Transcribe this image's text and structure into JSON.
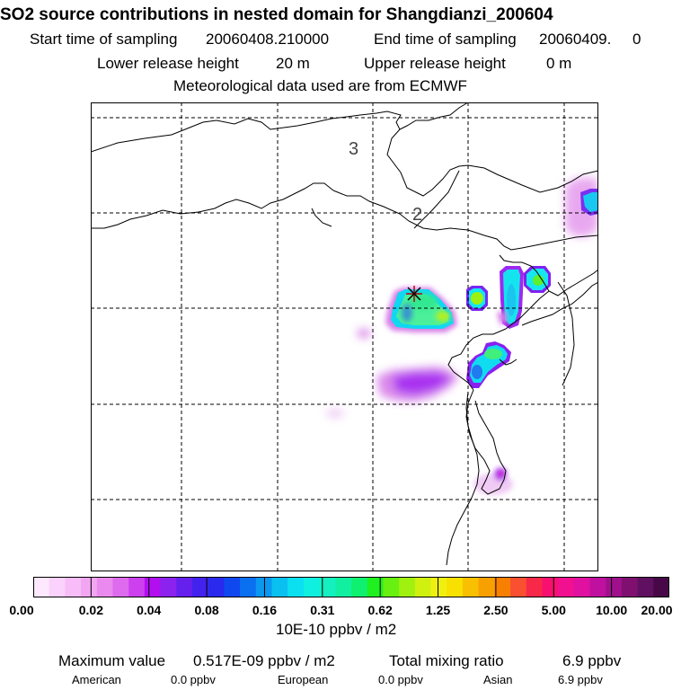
{
  "header": {
    "title": "SO2 source contributions in nested domain for Shangdianzi_200604",
    "start_label": "Start time of sampling",
    "start_value": "20060408.210000",
    "end_label": "End time of sampling",
    "end_value": "20060409.     0",
    "lower_label": "Lower release height",
    "lower_value": "20 m",
    "upper_label": "Upper release height",
    "upper_value": "0 m",
    "met_text": "Meteorological data used are from ECMWF"
  },
  "map": {
    "contour_labels": [
      "3",
      "2"
    ],
    "colors": {
      "frame": "#000000",
      "grid": "#000000",
      "coast": "#000000"
    }
  },
  "colorbar": {
    "colors": [
      "#fde8fd",
      "#fbd2fb",
      "#f8bcf8",
      "#f2a6f2",
      "#ea8aee",
      "#de6bee",
      "#cc40ee",
      "#b20ff0",
      "#8b22ee",
      "#6620ee",
      "#4422ee",
      "#2a2aee",
      "#1048f0",
      "#0a70f0",
      "#0a98f0",
      "#0ac0f0",
      "#0ae0f0",
      "#10f0e0",
      "#14f0c0",
      "#10f0a0",
      "#10f070",
      "#20f020",
      "#68f010",
      "#a0f010",
      "#d0f010",
      "#f0f010",
      "#f8e000",
      "#f8c000",
      "#f8a000",
      "#f88000",
      "#f85030",
      "#f82848",
      "#f81070",
      "#f01090",
      "#e010a0",
      "#c010a0",
      "#a0108c",
      "#801070",
      "#601060",
      "#480848"
    ],
    "tick_labels": [
      "0.00",
      "0.02",
      "0.04",
      "0.08",
      "0.16",
      "0.31",
      "0.62",
      "1.25",
      "2.50",
      "5.00",
      "10.00",
      "20.00"
    ],
    "units": "10E-10 ppbv / m2"
  },
  "summary": {
    "max_label": "Maximum value",
    "max_value": "0.517E-09 ppbv / m2",
    "total_label": "Total mixing ratio",
    "total_value": "6.9 ppbv",
    "regions": [
      {
        "name": "American",
        "value": "0.0 ppbv"
      },
      {
        "name": "European",
        "value": "0.0 ppbv"
      },
      {
        "name": "Asian",
        "value": "6.9 ppbv"
      }
    ]
  }
}
